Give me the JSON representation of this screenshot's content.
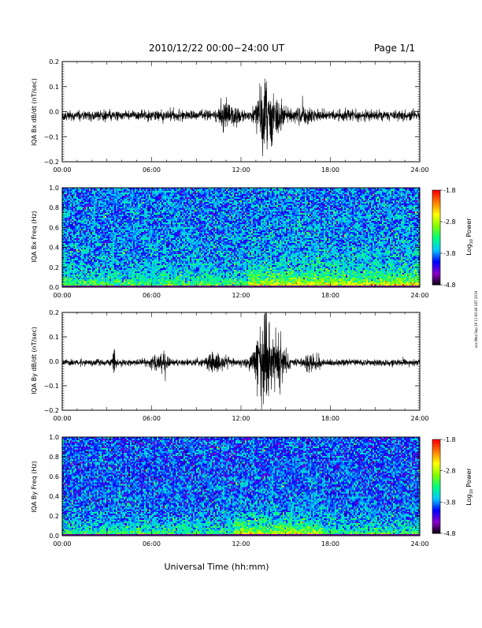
{
  "header": {
    "title": "2010/12/22  00:00−24:00 UT",
    "page": "Page 1/1"
  },
  "side_stamp": "xxx:Wed Sep 29 11:00:46 GST 2019",
  "x_axis": {
    "label": "Universal Time (hh:mm)",
    "ticks": [
      "00:00",
      "06:00",
      "12:00",
      "18:00",
      "24:00"
    ],
    "range_hours": [
      0,
      24
    ]
  },
  "colorbar": {
    "label_main": "Log",
    "label_sub": "10",
    "label_tail": " Power",
    "ticks": [
      "-1.8",
      "-2.8",
      "-3.8",
      "-4.8"
    ],
    "range": [
      -4.8,
      -1.8
    ],
    "colormap": [
      "#000000",
      "#8b00c8",
      "#0000ff",
      "#00c8ff",
      "#00ff80",
      "#80ff00",
      "#ffff00",
      "#ff8000",
      "#ff0000"
    ]
  },
  "chart_data": [
    {
      "type": "line",
      "name": "panel-bx-dbdt",
      "ylabel": "IQA Bx dB/dt (nT/sec)",
      "ylim": [
        -0.2,
        0.2
      ],
      "yticks": [
        "0.2",
        "0.1",
        "0.0",
        "−0.1",
        "−0.2"
      ],
      "ytick_values": [
        0.2,
        0.1,
        0.0,
        -0.1,
        -0.2
      ],
      "baseline": -0.015,
      "noise_amplitude": 0.018,
      "bursts": [
        {
          "center_hour": 10.9,
          "width_hour": 0.4,
          "amplitude": 0.035
        },
        {
          "center_hour": 11.6,
          "width_hour": 0.3,
          "amplitude": 0.03
        },
        {
          "center_hour": 13.6,
          "width_hour": 0.5,
          "amplitude": 0.12
        },
        {
          "center_hour": 14.4,
          "width_hour": 0.6,
          "amplitude": 0.05
        },
        {
          "center_hour": 16.2,
          "width_hour": 0.8,
          "amplitude": 0.02
        }
      ]
    },
    {
      "type": "heatmap",
      "name": "panel-bx-spectrogram",
      "ylabel": "IQA Bx Freq (Hz)",
      "ylim": [
        0.0,
        1.0
      ],
      "yticks": [
        "1.0",
        "0.8",
        "0.6",
        "0.4",
        "0.2",
        "0.0"
      ],
      "ytick_values": [
        1.0,
        0.8,
        0.6,
        0.4,
        0.2,
        0.0
      ],
      "base_log_power": -3.85,
      "low_freq_enhancement": -2.75,
      "enhanced_interval_hours": [
        12.5,
        24.0
      ]
    },
    {
      "type": "line",
      "name": "panel-by-dbdt",
      "ylabel": "IQA By dB/dt (nT/sec)",
      "ylim": [
        -0.2,
        0.2
      ],
      "yticks": [
        "0.2",
        "0.1",
        "0.0",
        "−0.1",
        "−0.2"
      ],
      "ytick_values": [
        0.2,
        0.1,
        0.0,
        -0.1,
        -0.2
      ],
      "baseline": -0.005,
      "noise_amplitude": 0.012,
      "bursts": [
        {
          "center_hour": 3.5,
          "width_hour": 0.1,
          "amplitude": 0.05
        },
        {
          "center_hour": 6.6,
          "width_hour": 0.5,
          "amplitude": 0.035
        },
        {
          "center_hour": 10.3,
          "width_hour": 0.6,
          "amplitude": 0.04
        },
        {
          "center_hour": 13.5,
          "width_hour": 0.7,
          "amplitude": 0.16
        },
        {
          "center_hour": 14.5,
          "width_hour": 0.5,
          "amplitude": 0.09
        },
        {
          "center_hour": 16.8,
          "width_hour": 0.5,
          "amplitude": 0.03
        }
      ]
    },
    {
      "type": "heatmap",
      "name": "panel-by-spectrogram",
      "ylabel": "IQA By Freq (Hz)",
      "ylim": [
        0.0,
        1.0
      ],
      "yticks": [
        "1.0",
        "0.8",
        "0.6",
        "0.4",
        "0.2",
        "0.0"
      ],
      "ytick_values": [
        1.0,
        0.8,
        0.6,
        0.4,
        0.2,
        0.0
      ],
      "base_log_power": -3.95,
      "low_freq_enhancement": -2.85,
      "enhanced_interval_hours": [
        11.5,
        17.5
      ]
    }
  ]
}
